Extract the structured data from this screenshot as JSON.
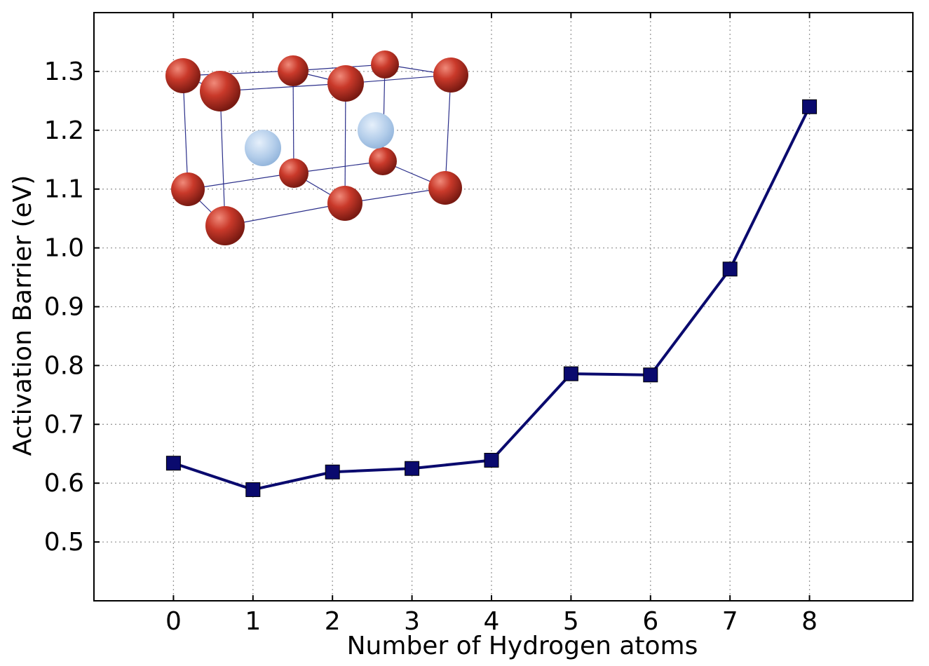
{
  "chart_data": {
    "type": "line",
    "xlabel": "Number of Hydrogen atoms",
    "ylabel": "Activation Barrier (eV)",
    "xlim": [
      -1,
      9.3
    ],
    "ylim": [
      0.4,
      1.4
    ],
    "x_ticks": [
      0,
      1,
      2,
      3,
      4,
      5,
      6,
      7,
      8
    ],
    "y_ticks": [
      0.5,
      0.6,
      0.7,
      0.8,
      0.9,
      1.0,
      1.1,
      1.2,
      1.3
    ],
    "y_tick_labels": [
      "0.5",
      "0.6",
      "0.7",
      "0.8",
      "0.9",
      "1.0",
      "1.1",
      "1.2",
      "1.3"
    ],
    "grid": true,
    "grid_style": "dotted",
    "series": [
      {
        "color": "#0a0a6e",
        "marker": "square",
        "x": [
          0,
          1,
          2,
          3,
          4,
          5,
          6,
          7,
          8
        ],
        "y": [
          0.634,
          0.589,
          0.619,
          0.625,
          0.639,
          0.786,
          0.784,
          0.964,
          1.24
        ]
      }
    ],
    "inset": {
      "description": "crystal lattice illustration",
      "metal_atom_color": "#c0392b",
      "hydrogen_atom_color": "#a9c7ea"
    }
  }
}
